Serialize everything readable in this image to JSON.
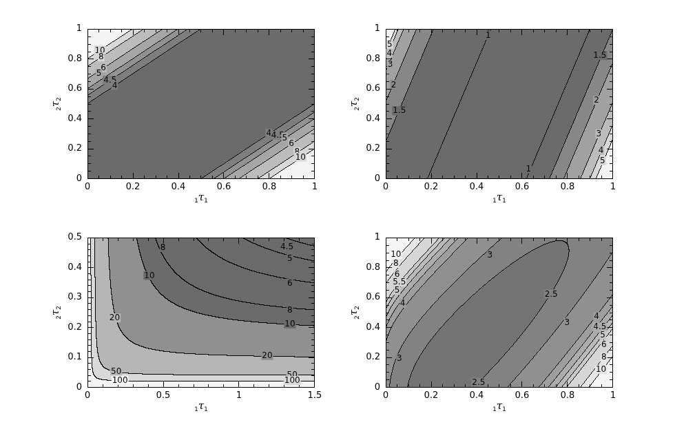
{
  "background": "#ffffff",
  "line_color": "#000000",
  "chart_data": [
    {
      "id": "top_left",
      "type": "contour",
      "surface": "2/(1-Math.min(Math.abs(y-x),0.95))",
      "x_range": [
        0,
        1
      ],
      "y_range": [
        0,
        1
      ],
      "x_ticks": {
        "values": [
          0,
          0.2,
          0.4,
          0.6,
          0.8,
          1
        ],
        "labels": [
          "0",
          "0.2",
          "0.4",
          "0.6",
          "0.8",
          "1"
        ],
        "minor_step": 0.05
      },
      "y_ticks": {
        "values": [
          0,
          0.2,
          0.4,
          0.6,
          0.8,
          1
        ],
        "labels": [
          "0",
          "0.2",
          "0.4",
          "0.6",
          "0.8",
          "1"
        ],
        "minor_step": 0.05
      },
      "x_label": {
        "prefix": "1",
        "symbol": "τ",
        "subscript": "1"
      },
      "y_label": {
        "prefix": "2",
        "symbol": "τ",
        "subscript": "2"
      },
      "line_levels": [
        4,
        4.5,
        5,
        6,
        8,
        10
      ],
      "fill_levels": [
        4,
        4.5,
        5,
        6,
        8,
        10
      ],
      "fill_colors": [
        "#6b6b6b",
        "#7e7e7e",
        "#929292",
        "#a6a6a6",
        "#bcbcbc",
        "#d8d8d8",
        "#f3f3f3"
      ],
      "contour_labels": [
        {
          "text": "10",
          "x": 0.055,
          "y": 0.855
        },
        {
          "text": "8",
          "x": 0.06,
          "y": 0.81
        },
        {
          "text": "6",
          "x": 0.07,
          "y": 0.737
        },
        {
          "text": "5",
          "x": 0.05,
          "y": 0.7
        },
        {
          "text": "4.5",
          "x": 0.1,
          "y": 0.655
        },
        {
          "text": "4",
          "x": 0.12,
          "y": 0.62
        },
        {
          "text": "4",
          "x": 0.8,
          "y": 0.3
        },
        {
          "text": "4.5",
          "x": 0.84,
          "y": 0.285
        },
        {
          "text": "5",
          "x": 0.87,
          "y": 0.27
        },
        {
          "text": "6",
          "x": 0.9,
          "y": 0.233
        },
        {
          "text": "8",
          "x": 0.925,
          "y": 0.175
        },
        {
          "text": "10",
          "x": 0.94,
          "y": 0.14
        }
      ]
    },
    {
      "id": "top_right",
      "type": "contour",
      "surface": "Math.max(0.58+0.195/Math.max(x+0.28*(1-y),0.012), 0.698/Math.max(1.33-(x+0.28*(1-y)),0.02)-0.623)",
      "x_range": [
        0,
        1
      ],
      "y_range": [
        0,
        1
      ],
      "x_ticks": {
        "values": [
          0,
          0.2,
          0.4,
          0.6,
          0.8,
          1
        ],
        "labels": [
          "0",
          "0.2",
          "0.4",
          "0.6",
          "0.8",
          "1"
        ],
        "minor_step": 0.05
      },
      "y_ticks": {
        "values": [
          0,
          0.2,
          0.4,
          0.6,
          0.8,
          1
        ],
        "labels": [
          "0",
          "0.2",
          "0.4",
          "0.6",
          "0.8",
          "1"
        ],
        "minor_step": 0.05
      },
      "x_label": {
        "prefix": "1",
        "symbol": "τ",
        "subscript": "1"
      },
      "y_label": {
        "prefix": "2",
        "symbol": "τ",
        "subscript": "2"
      },
      "line_levels": [
        1,
        1.5,
        2,
        3,
        4,
        5
      ],
      "fill_levels": [
        1.5,
        2,
        3,
        4,
        5
      ],
      "fill_colors": [
        "#6b6b6b",
        "#878787",
        "#a1a1a1",
        "#bcbcbc",
        "#d8d8d8",
        "#f3f3f3"
      ],
      "contour_labels": [
        {
          "text": "5",
          "x": 0.018,
          "y": 0.895
        },
        {
          "text": "4",
          "x": 0.016,
          "y": 0.835
        },
        {
          "text": "3",
          "x": 0.02,
          "y": 0.76
        },
        {
          "text": "2",
          "x": 0.035,
          "y": 0.625
        },
        {
          "text": "1.5",
          "x": 0.06,
          "y": 0.45
        },
        {
          "text": "1",
          "x": 0.452,
          "y": 0.955
        },
        {
          "text": "1",
          "x": 0.63,
          "y": 0.06
        },
        {
          "text": "1.5",
          "x": 0.945,
          "y": 0.82
        },
        {
          "text": "2",
          "x": 0.93,
          "y": 0.52
        },
        {
          "text": "3",
          "x": 0.94,
          "y": 0.295
        },
        {
          "text": "4",
          "x": 0.95,
          "y": 0.185
        },
        {
          "text": "5",
          "x": 0.957,
          "y": 0.115
        }
      ]
    },
    {
      "id": "bottom_left",
      "type": "contour",
      "surface": "2/Math.max(y,0.004)+2.4/Math.max(x,0.004)-1.35",
      "x_range": [
        0,
        1.5
      ],
      "y_range": [
        0,
        0.5
      ],
      "x_ticks": {
        "values": [
          0,
          0.5,
          1,
          1.5
        ],
        "labels": [
          "0",
          "0.5",
          "1",
          "1.5"
        ],
        "minor_step": 0.1
      },
      "y_ticks": {
        "values": [
          0,
          0.1,
          0.2,
          0.3,
          0.4,
          0.5
        ],
        "labels": [
          "0",
          "0.1",
          "0.2",
          "0.3",
          "0.4",
          "0.5"
        ],
        "minor_step": 0.02
      },
      "x_label": {
        "prefix": "1",
        "symbol": "τ",
        "subscript": "1"
      },
      "y_label": {
        "prefix": "2",
        "symbol": "τ",
        "subscript": "2"
      },
      "line_levels": [
        4.5,
        5,
        6,
        8,
        10,
        20,
        50,
        100
      ],
      "fill_levels": [
        10,
        20,
        50,
        100
      ],
      "fill_colors": [
        "#6b6b6b",
        "#909090",
        "#b6b6b6",
        "#d9d9d9",
        "#f5f5f5"
      ],
      "contour_labels": [
        {
          "text": "8",
          "x": 0.5,
          "y": 0.465
        },
        {
          "text": "10",
          "x": 0.41,
          "y": 0.372
        },
        {
          "text": "20",
          "x": 0.18,
          "y": 0.23
        },
        {
          "text": "50",
          "x": 0.19,
          "y": 0.052
        },
        {
          "text": "100",
          "x": 0.215,
          "y": 0.0215
        },
        {
          "text": "4.5",
          "x": 1.32,
          "y": 0.468
        },
        {
          "text": "5",
          "x": 1.34,
          "y": 0.43
        },
        {
          "text": "6",
          "x": 1.34,
          "y": 0.347
        },
        {
          "text": "8",
          "x": 1.34,
          "y": 0.255
        },
        {
          "text": "10",
          "x": 1.34,
          "y": 0.21
        },
        {
          "text": "20",
          "x": 1.19,
          "y": 0.104
        },
        {
          "text": "50",
          "x": 1.355,
          "y": 0.0405
        },
        {
          "text": "100",
          "x": 1.355,
          "y": 0.0205
        }
      ]
    },
    {
      "id": "bottom_right",
      "type": "contour",
      "surface": "0.72+0.69/Math.pow((x+0.25)+0.6*(1.1-y),3)+0.76/Math.pow(Math.max((1.06-x)+0.5*(y+0.1),0.06),1.6)+0.8*Math.pow(y-0.1-0.55*x,2)+0.05/(x+0.05)",
      "x_range": [
        0,
        1
      ],
      "y_range": [
        0,
        1
      ],
      "x_ticks": {
        "values": [
          0,
          0.2,
          0.4,
          0.6,
          0.8,
          1
        ],
        "labels": [
          "0",
          "0.2",
          "0.4",
          "0.6",
          "0.8",
          "1"
        ],
        "minor_step": 0.05
      },
      "y_ticks": {
        "values": [
          0,
          0.2,
          0.4,
          0.6,
          0.8,
          1
        ],
        "labels": [
          "0",
          "0.2",
          "0.4",
          "0.6",
          "0.8",
          "1"
        ],
        "minor_step": 0.05
      },
      "x_label": {
        "prefix": "1",
        "symbol": "τ",
        "subscript": "1"
      },
      "y_label": {
        "prefix": "2",
        "symbol": "τ",
        "subscript": "2"
      },
      "line_levels": [
        2.5,
        3,
        4,
        4.5,
        5,
        5.5,
        6,
        8,
        10
      ],
      "fill_levels": [
        2.5,
        3,
        4,
        4.5,
        5,
        5.5,
        6,
        8,
        10
      ],
      "fill_colors": [
        "#747474",
        "#828282",
        "#909090",
        "#9e9e9e",
        "#acacac",
        "#bababa",
        "#c8c8c8",
        "#d6d6d6",
        "#e6e6e6",
        "#f5f5f5"
      ],
      "contour_labels": [
        {
          "text": "10",
          "x": 0.045,
          "y": 0.885
        },
        {
          "text": "8",
          "x": 0.045,
          "y": 0.825
        },
        {
          "text": "6",
          "x": 0.05,
          "y": 0.75
        },
        {
          "text": "5.5",
          "x": 0.06,
          "y": 0.7
        },
        {
          "text": "5",
          "x": 0.05,
          "y": 0.645
        },
        {
          "text": "4",
          "x": 0.075,
          "y": 0.558
        },
        {
          "text": "3",
          "x": 0.06,
          "y": 0.19
        },
        {
          "text": "3",
          "x": 0.46,
          "y": 0.88
        },
        {
          "text": "2.5",
          "x": 0.73,
          "y": 0.62
        },
        {
          "text": "2.5",
          "x": 0.41,
          "y": 0.03
        },
        {
          "text": "3",
          "x": 0.8,
          "y": 0.43
        },
        {
          "text": "4",
          "x": 0.93,
          "y": 0.47
        },
        {
          "text": "4.5",
          "x": 0.945,
          "y": 0.4
        },
        {
          "text": "5",
          "x": 0.958,
          "y": 0.345
        },
        {
          "text": "6",
          "x": 0.963,
          "y": 0.28
        },
        {
          "text": "8",
          "x": 0.963,
          "y": 0.197
        },
        {
          "text": "10",
          "x": 0.95,
          "y": 0.115
        }
      ]
    }
  ]
}
